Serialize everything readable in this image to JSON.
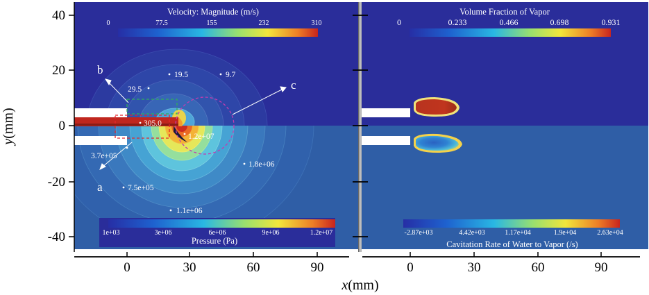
{
  "axes": {
    "y_ticks": [
      "40",
      "20",
      "0",
      "-20",
      "-40"
    ],
    "x_ticks_left": [
      "0",
      "30",
      "60",
      "90"
    ],
    "x_ticks_right": [
      "0",
      "30",
      "60",
      "90"
    ],
    "y_label_prefix": "y",
    "y_label_unit": "(mm)",
    "x_label_prefix": "x",
    "x_label_unit": "(mm)"
  },
  "left_panel": {
    "velocity_colorbar": {
      "title": "Velocity: Magnitude (m/s)",
      "ticks": [
        "0",
        "77.5",
        "155",
        "232",
        "310"
      ]
    },
    "pressure_colorbar": {
      "title": "Pressure (Pa)",
      "ticks": [
        "1e+03",
        "3e+06",
        "6e+06",
        "9e+06",
        "1.2e+07"
      ]
    },
    "velocity_values": [
      "19.5",
      "9.7",
      "29.5",
      "305.0"
    ],
    "pressure_values": [
      "1.2e+07",
      "3.7e+05",
      "1.8e+06",
      "7.5e+05",
      "1.1e+06"
    ],
    "callouts": [
      "a",
      "b",
      "c"
    ]
  },
  "right_panel": {
    "vapor_colorbar": {
      "title": "Volume Fraction of Vapor",
      "ticks": [
        "0",
        "0.233",
        "0.466",
        "0.698",
        "0.931"
      ]
    },
    "cavitation_colorbar": {
      "title": "Cavitation Rate of Water to Vapor (/s)",
      "ticks": [
        "-2.87e+03",
        "4.42e+03",
        "1.17e+04",
        "1.9e+04",
        "2.63e+04"
      ]
    }
  },
  "colors": {
    "background_field": "#2a2d9a",
    "lower_field": "#2f5ea6",
    "jet_core": "#c0261e",
    "nozzle": "#ffffff"
  }
}
